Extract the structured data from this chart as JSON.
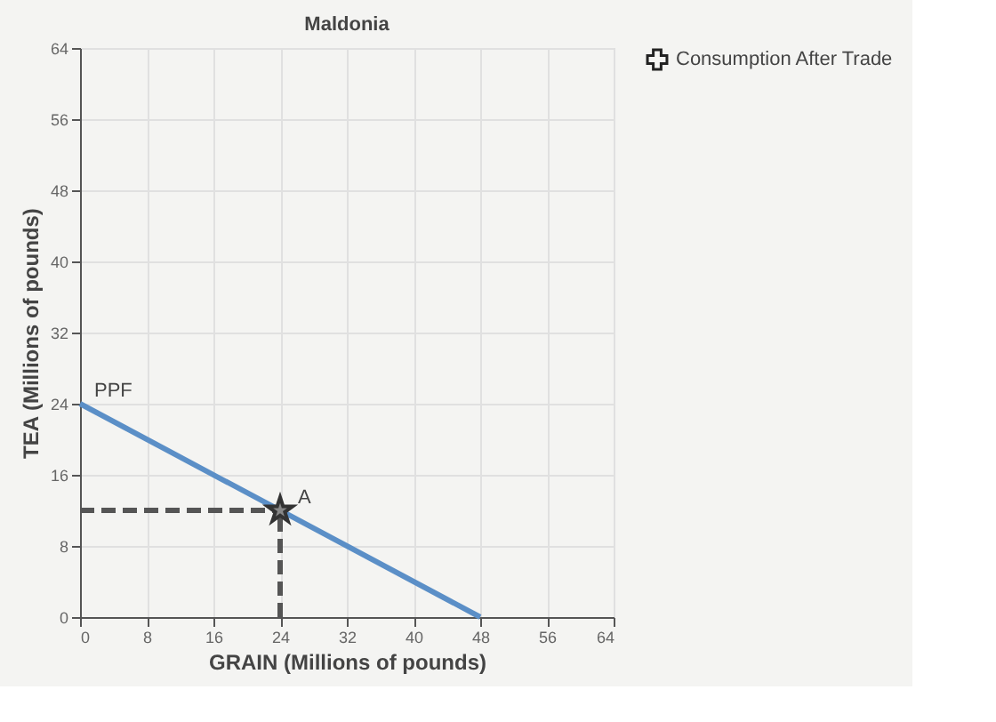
{
  "chart_data": {
    "type": "line",
    "title": "Maldonia",
    "xlabel": "GRAIN (Millions of pounds)",
    "ylabel": "TEA (Millions of pounds)",
    "xlim": [
      0,
      64
    ],
    "ylim": [
      0,
      64
    ],
    "xticks": [
      0,
      8,
      16,
      24,
      32,
      40,
      48,
      56,
      64
    ],
    "yticks": [
      0,
      8,
      16,
      24,
      32,
      40,
      48,
      56,
      64
    ],
    "grid": true,
    "legend": "right",
    "series": [
      {
        "color": "#5b8fc7",
        "x": [
          0,
          48
        ],
        "values": [
          24,
          0
        ],
        "line_style": "solid",
        "marker": "none"
      },
      {
        "color": "#555555",
        "x": [
          0,
          24
        ],
        "values": [
          12,
          12
        ],
        "line_style": "dashed",
        "marker": "none"
      },
      {
        "color": "#555555",
        "x": [
          24,
          24
        ],
        "values": [
          0,
          12
        ],
        "line_style": "dashed",
        "marker": "none"
      },
      {
        "type": "scatter",
        "color": "#333333",
        "x": [
          24
        ],
        "values": [
          12
        ],
        "marker": "star"
      },
      {
        "type": "scatter",
        "name": "Consumption After Trade",
        "color": "#222222",
        "marker": "cross"
      }
    ],
    "annotations": [
      {
        "text": "PPF",
        "x": 0,
        "y": 24
      },
      {
        "text": "A",
        "x": 24,
        "y": 12
      }
    ]
  }
}
